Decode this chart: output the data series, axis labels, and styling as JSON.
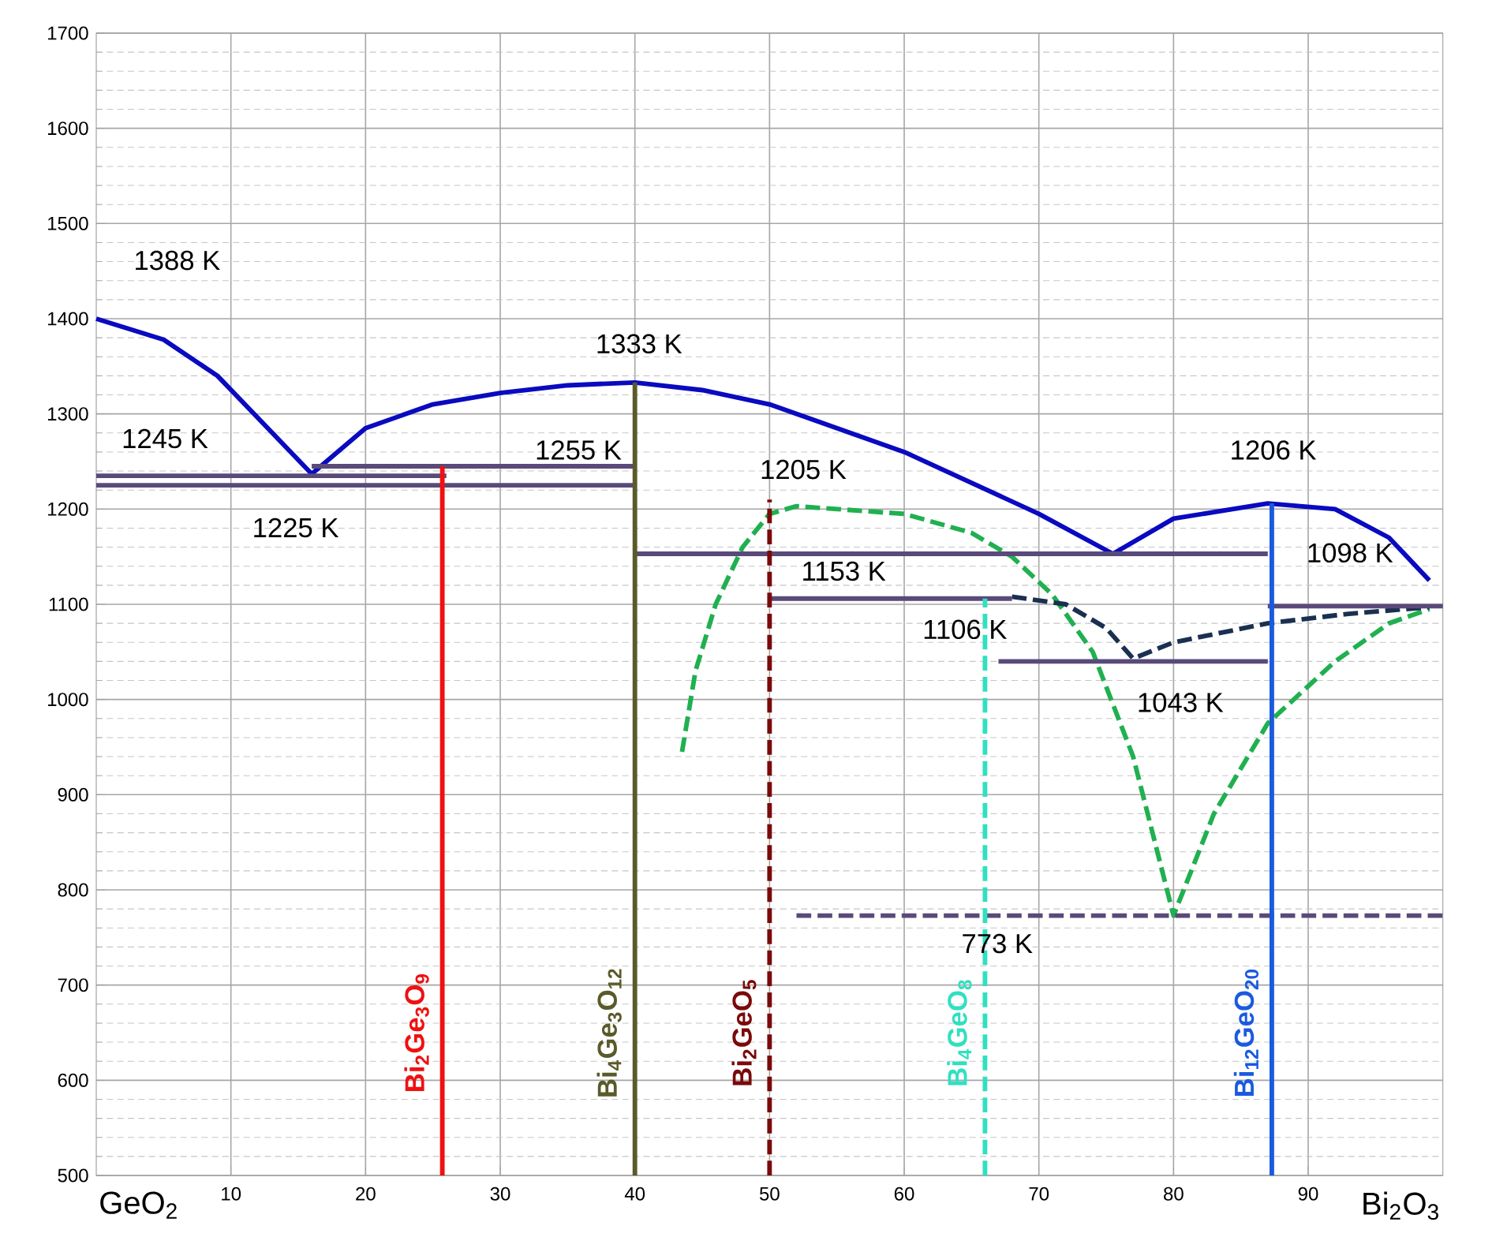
{
  "chart_data": {
    "type": "line",
    "xlim": [
      0,
      100
    ],
    "ylim": [
      500,
      1700
    ],
    "xticks": [
      10,
      20,
      30,
      40,
      50,
      60,
      70,
      80,
      90
    ],
    "yticks": [
      500,
      600,
      700,
      800,
      900,
      1000,
      1100,
      1200,
      1300,
      1400,
      1500,
      1600,
      1700
    ],
    "grid": true,
    "marker": "none",
    "series": [
      {
        "color": "#0a0ac0",
        "line_style": "solid",
        "x": [
          0,
          5,
          9,
          16,
          20,
          25,
          30,
          35,
          40,
          45,
          50,
          60,
          70,
          75.5,
          80,
          87,
          92,
          96,
          99
        ],
        "values": [
          1400,
          1378,
          1340,
          1237,
          1285,
          1310,
          1322,
          1330,
          1333,
          1325,
          1310,
          1260,
          1195,
          1153,
          1190,
          1206,
          1200,
          1170,
          1125
        ]
      },
      {
        "color": "#20b050",
        "line_style": "dashed",
        "x": [
          43.5,
          44.5,
          46,
          48,
          50,
          52,
          60,
          65,
          68,
          71,
          74,
          77,
          80,
          83,
          87,
          92,
          96,
          99
        ],
        "values": [
          945,
          1030,
          1100,
          1160,
          1195,
          1203,
          1195,
          1175,
          1150,
          1110,
          1050,
          940,
          773,
          880,
          975,
          1040,
          1080,
          1095
        ]
      },
      {
        "color": "#1a3050",
        "line_style": "dashed",
        "x": [
          68,
          72,
          75,
          77,
          80,
          87,
          93,
          99
        ],
        "values": [
          1108,
          1100,
          1075,
          1043,
          1060,
          1080,
          1090,
          1097
        ]
      },
      {
        "color": "#5a4a7a",
        "line_style": "solid",
        "x": [
          0,
          26
        ],
        "values": [
          1235,
          1235
        ]
      },
      {
        "color": "#5a4a7a",
        "line_style": "solid",
        "x": [
          16,
          40
        ],
        "values": [
          1245,
          1245
        ]
      },
      {
        "color": "#5a4a7a",
        "line_style": "solid",
        "x": [
          0,
          40
        ],
        "values": [
          1225,
          1225
        ]
      },
      {
        "color": "#5a4a7a",
        "line_style": "solid",
        "x": [
          40,
          87
        ],
        "values": [
          1153,
          1153
        ]
      },
      {
        "color": "#5a4a7a",
        "line_style": "solid",
        "x": [
          50,
          68
        ],
        "values": [
          1106,
          1106
        ]
      },
      {
        "color": "#5a4a7a",
        "line_style": "solid",
        "x": [
          67,
          87
        ],
        "values": [
          1040,
          1040
        ]
      },
      {
        "color": "#5a4a7a",
        "line_style": "solid",
        "x": [
          87,
          100
        ],
        "values": [
          1098,
          1098
        ]
      },
      {
        "color": "#5a4a7a",
        "line_style": "dashed",
        "x": [
          52,
          100
        ],
        "values": [
          773,
          773
        ]
      },
      {
        "name": "Bi$_{2}$Ge$_{3}$O$_{9}$",
        "color": "#f01010",
        "line_style": "solid",
        "x": [
          25.7,
          25.7
        ],
        "values": [
          500,
          1245
        ]
      },
      {
        "name": "Bi$_{4}$Ge$_{3}$O$_{12}$",
        "color": "#5a5a2a",
        "line_style": "solid",
        "x": [
          40,
          40
        ],
        "values": [
          500,
          1333
        ]
      },
      {
        "name": "Bi$_{2}$GeO$_{5}$",
        "color": "#7a0a0a",
        "line_style": "dashed",
        "x": [
          50,
          50
        ],
        "values": [
          500,
          1210
        ]
      },
      {
        "name": "Bi$_{4}$GeO$_{8}$",
        "color": "#30e0c0",
        "line_style": "dashed",
        "x": [
          66,
          66
        ],
        "values": [
          500,
          1106
        ]
      },
      {
        "name": "Bi$_{12}$GeO$_{20}$",
        "color": "#1a5ae0",
        "line_style": "solid",
        "x": [
          87.3,
          87.3
        ],
        "values": [
          500,
          1206
        ]
      }
    ],
    "annotations": [
      "1388 K",
      "1333 K",
      "1245 K",
      "1255 K",
      "1225 K",
      "1205 K",
      "1206 K",
      "1153 K",
      "1098 K",
      "1106 K",
      "1043 K",
      "773 K",
      "GeO$_{2}$",
      "Bi$_{2}$O$_{3}$"
    ]
  }
}
